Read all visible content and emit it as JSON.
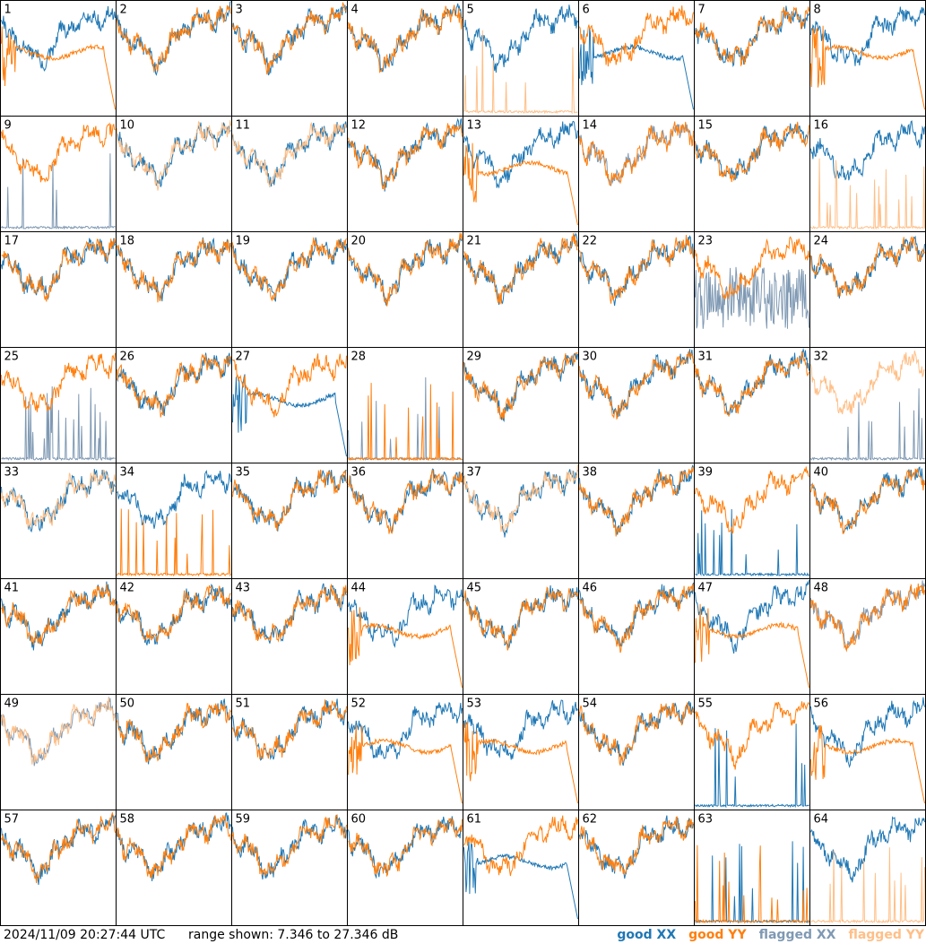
{
  "footer": {
    "timestamp": "2024/11/09 20:27:44 UTC",
    "range_text": "range shown: 7.346 to 27.346 dB"
  },
  "legend": {
    "good_xx": "good XX",
    "good_yy": "good YY",
    "flagged_xx": "flagged XX",
    "flagged_yy": "flagged YY"
  },
  "colors": {
    "good_xx": "#1f77b4",
    "good_yy": "#ff7f0e",
    "flagged_xx": "#7f99b3",
    "flagged_yy": "#ffbf87"
  },
  "chart_data": {
    "type": "line",
    "grid_rows": 8,
    "grid_cols": 8,
    "ylim": [
      7.346,
      27.346
    ],
    "panels": [
      {
        "id": 1,
        "xx": "good",
        "yy": "good",
        "xx_shape": "normal",
        "yy_shape": "edge_drop"
      },
      {
        "id": 2,
        "xx": "good",
        "yy": "good",
        "xx_shape": "normal",
        "yy_shape": "normal"
      },
      {
        "id": 3,
        "xx": "good",
        "yy": "good",
        "xx_shape": "normal",
        "yy_shape": "normal"
      },
      {
        "id": 4,
        "xx": "good",
        "yy": "good",
        "xx_shape": "normal",
        "yy_shape": "normal"
      },
      {
        "id": 5,
        "xx": "good",
        "yy": "flagged",
        "xx_shape": "normal",
        "yy_shape": "spiky_low"
      },
      {
        "id": 6,
        "xx": "good",
        "yy": "good",
        "xx_shape": "edge_drop",
        "yy_shape": "normal"
      },
      {
        "id": 7,
        "xx": "good",
        "yy": "good",
        "xx_shape": "normal",
        "yy_shape": "normal"
      },
      {
        "id": 8,
        "xx": "good",
        "yy": "good",
        "xx_shape": "normal",
        "yy_shape": "edge_drop"
      },
      {
        "id": 9,
        "xx": "flagged",
        "yy": "good",
        "xx_shape": "spiky_low",
        "yy_shape": "normal"
      },
      {
        "id": 10,
        "xx": "good",
        "yy": "flagged",
        "xx_shape": "normal",
        "yy_shape": "normal"
      },
      {
        "id": 11,
        "xx": "good",
        "yy": "flagged",
        "xx_shape": "normal",
        "yy_shape": "normal"
      },
      {
        "id": 12,
        "xx": "good",
        "yy": "good",
        "xx_shape": "normal",
        "yy_shape": "normal"
      },
      {
        "id": 13,
        "xx": "good",
        "yy": "good",
        "xx_shape": "normal",
        "yy_shape": "edge_drop"
      },
      {
        "id": 14,
        "xx": "flagged",
        "yy": "good",
        "xx_shape": "normal",
        "yy_shape": "normal"
      },
      {
        "id": 15,
        "xx": "good",
        "yy": "good",
        "xx_shape": "normal",
        "yy_shape": "normal"
      },
      {
        "id": 16,
        "xx": "good",
        "yy": "flagged",
        "xx_shape": "normal",
        "yy_shape": "spiky_low"
      },
      {
        "id": 17,
        "xx": "good",
        "yy": "good",
        "xx_shape": "normal",
        "yy_shape": "normal"
      },
      {
        "id": 18,
        "xx": "good",
        "yy": "good",
        "xx_shape": "normal",
        "yy_shape": "normal"
      },
      {
        "id": 19,
        "xx": "good",
        "yy": "good",
        "xx_shape": "normal",
        "yy_shape": "normal"
      },
      {
        "id": 20,
        "xx": "good",
        "yy": "good",
        "xx_shape": "normal",
        "yy_shape": "normal"
      },
      {
        "id": 21,
        "xx": "good",
        "yy": "good",
        "xx_shape": "normal",
        "yy_shape": "normal"
      },
      {
        "id": 22,
        "xx": "good",
        "yy": "good",
        "xx_shape": "normal",
        "yy_shape": "normal"
      },
      {
        "id": 23,
        "xx": "flagged",
        "yy": "good",
        "xx_shape": "noisy_mid",
        "yy_shape": "normal"
      },
      {
        "id": 24,
        "xx": "good",
        "yy": "good",
        "xx_shape": "normal",
        "yy_shape": "normal"
      },
      {
        "id": 25,
        "xx": "flagged",
        "yy": "good",
        "xx_shape": "spiky_low",
        "yy_shape": "normal"
      },
      {
        "id": 26,
        "xx": "good",
        "yy": "good",
        "xx_shape": "normal",
        "yy_shape": "normal"
      },
      {
        "id": 27,
        "xx": "good",
        "yy": "good",
        "xx_shape": "edge_drop",
        "yy_shape": "normal"
      },
      {
        "id": 28,
        "xx": "flagged",
        "yy": "good",
        "xx_shape": "spiky_low",
        "yy_shape": "spiky_low"
      },
      {
        "id": 29,
        "xx": "good",
        "yy": "good",
        "xx_shape": "normal",
        "yy_shape": "normal"
      },
      {
        "id": 30,
        "xx": "good",
        "yy": "good",
        "xx_shape": "normal",
        "yy_shape": "normal"
      },
      {
        "id": 31,
        "xx": "good",
        "yy": "good",
        "xx_shape": "normal",
        "yy_shape": "normal"
      },
      {
        "id": 32,
        "xx": "flagged",
        "yy": "flagged",
        "xx_shape": "spiky_low",
        "yy_shape": "normal"
      },
      {
        "id": 33,
        "xx": "good",
        "yy": "flagged",
        "xx_shape": "normal",
        "yy_shape": "normal"
      },
      {
        "id": 34,
        "xx": "good",
        "yy": "good",
        "xx_shape": "normal",
        "yy_shape": "spiky_low"
      },
      {
        "id": 35,
        "xx": "good",
        "yy": "good",
        "xx_shape": "normal",
        "yy_shape": "normal"
      },
      {
        "id": 36,
        "xx": "good",
        "yy": "good",
        "xx_shape": "normal",
        "yy_shape": "normal"
      },
      {
        "id": 37,
        "xx": "good",
        "yy": "flagged",
        "xx_shape": "normal",
        "yy_shape": "normal"
      },
      {
        "id": 38,
        "xx": "good",
        "yy": "good",
        "xx_shape": "normal",
        "yy_shape": "normal"
      },
      {
        "id": 39,
        "xx": "good",
        "yy": "good",
        "xx_shape": "spiky_low",
        "yy_shape": "normal"
      },
      {
        "id": 40,
        "xx": "good",
        "yy": "good",
        "xx_shape": "normal",
        "yy_shape": "normal"
      },
      {
        "id": 41,
        "xx": "good",
        "yy": "good",
        "xx_shape": "normal",
        "yy_shape": "normal"
      },
      {
        "id": 42,
        "xx": "good",
        "yy": "good",
        "xx_shape": "normal",
        "yy_shape": "normal"
      },
      {
        "id": 43,
        "xx": "good",
        "yy": "good",
        "xx_shape": "normal",
        "yy_shape": "normal"
      },
      {
        "id": 44,
        "xx": "good",
        "yy": "good",
        "xx_shape": "normal",
        "yy_shape": "edge_drop"
      },
      {
        "id": 45,
        "xx": "good",
        "yy": "good",
        "xx_shape": "normal",
        "yy_shape": "normal"
      },
      {
        "id": 46,
        "xx": "good",
        "yy": "good",
        "xx_shape": "normal",
        "yy_shape": "normal"
      },
      {
        "id": 47,
        "xx": "good",
        "yy": "good",
        "xx_shape": "normal",
        "yy_shape": "edge_drop"
      },
      {
        "id": 48,
        "xx": "flagged",
        "yy": "good",
        "xx_shape": "normal",
        "yy_shape": "normal"
      },
      {
        "id": 49,
        "xx": "flagged",
        "yy": "flagged",
        "xx_shape": "normal",
        "yy_shape": "normal"
      },
      {
        "id": 50,
        "xx": "good",
        "yy": "good",
        "xx_shape": "normal",
        "yy_shape": "normal"
      },
      {
        "id": 51,
        "xx": "good",
        "yy": "good",
        "xx_shape": "normal",
        "yy_shape": "normal"
      },
      {
        "id": 52,
        "xx": "good",
        "yy": "good",
        "xx_shape": "normal",
        "yy_shape": "edge_drop"
      },
      {
        "id": 53,
        "xx": "good",
        "yy": "good",
        "xx_shape": "normal",
        "yy_shape": "edge_drop"
      },
      {
        "id": 54,
        "xx": "good",
        "yy": "good",
        "xx_shape": "normal",
        "yy_shape": "normal"
      },
      {
        "id": 55,
        "xx": "good",
        "yy": "good",
        "xx_shape": "spiky_low",
        "yy_shape": "normal"
      },
      {
        "id": 56,
        "xx": "good",
        "yy": "good",
        "xx_shape": "normal",
        "yy_shape": "edge_drop"
      },
      {
        "id": 57,
        "xx": "good",
        "yy": "good",
        "xx_shape": "normal",
        "yy_shape": "normal"
      },
      {
        "id": 58,
        "xx": "good",
        "yy": "good",
        "xx_shape": "normal",
        "yy_shape": "normal"
      },
      {
        "id": 59,
        "xx": "good",
        "yy": "good",
        "xx_shape": "normal",
        "yy_shape": "normal"
      },
      {
        "id": 60,
        "xx": "good",
        "yy": "good",
        "xx_shape": "normal",
        "yy_shape": "normal"
      },
      {
        "id": 61,
        "xx": "good",
        "yy": "good",
        "xx_shape": "edge_drop",
        "yy_shape": "normal"
      },
      {
        "id": 62,
        "xx": "good",
        "yy": "good",
        "xx_shape": "normal",
        "yy_shape": "normal"
      },
      {
        "id": 63,
        "xx": "good",
        "yy": "good",
        "xx_shape": "spiky_low",
        "yy_shape": "spiky_low"
      },
      {
        "id": 64,
        "xx": "good",
        "yy": "flagged",
        "xx_shape": "normal",
        "yy_shape": "spiky_low"
      }
    ]
  }
}
